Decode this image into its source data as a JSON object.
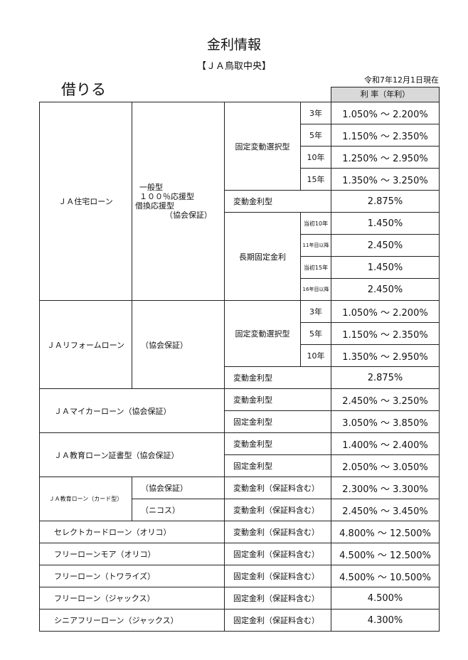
{
  "title": "金利情報",
  "org": "【ＪＡ鳥取中央】",
  "section": "借りる",
  "as_of": "令和7年12月1日現在",
  "rate_header": "利 率（年利）",
  "housing": {
    "name": "ＪＡ住宅ローン",
    "types": [
      "一般型",
      "１００％応援型",
      "借換応援型",
      "（協会保証）"
    ],
    "fixed_select": "固定変動選択型",
    "terms": [
      {
        "term": "3年",
        "rate": "1.050% ～ 2.200%"
      },
      {
        "term": "5年",
        "rate": "1.150% ～ 2.350%"
      },
      {
        "term": "10年",
        "rate": "1.250% ～ 2.950%"
      },
      {
        "term": "15年",
        "rate": "1.350% ～ 3.250%"
      }
    ],
    "variable": "変動金利型",
    "variable_rate": "2.875%",
    "long_fixed": "長期固定金利",
    "long_terms": [
      {
        "term": "当初10年",
        "rate": "1.450%"
      },
      {
        "term": "11年目以降",
        "rate": "2.450%"
      },
      {
        "term": "当初15年",
        "rate": "1.450%"
      },
      {
        "term": "16年目以降",
        "rate": "2.450%"
      }
    ]
  },
  "reform": {
    "name": "ＪＡリフォームローン",
    "guarantee": "（協会保証）",
    "fixed_select": "固定変動選択型",
    "terms": [
      {
        "term": "3年",
        "rate": "1.050% ～ 2.200%"
      },
      {
        "term": "5年",
        "rate": "1.150% ～ 2.350%"
      },
      {
        "term": "10年",
        "rate": "1.350% ～ 2.950%"
      }
    ],
    "variable": "変動金利型",
    "variable_rate": "2.875%"
  },
  "mycar": {
    "name": "ＪＡマイカーローン（協会保証）",
    "rows": [
      {
        "type": "変動金利型",
        "rate": "2.450% ～ 3.250%"
      },
      {
        "type": "固定金利型",
        "rate": "3.050% ～ 3.850%"
      }
    ]
  },
  "education": {
    "name": "ＪＡ教育ローン証書型（協会保証）",
    "rows": [
      {
        "type": "変動金利型",
        "rate": "1.400% ～ 2.400%"
      },
      {
        "type": "固定金利型",
        "rate": "2.050% ～ 3.050%"
      }
    ]
  },
  "edu_card": {
    "name": "ＪＡ教育ローン（カード型）",
    "rows": [
      {
        "guarantee": "（協会保証）",
        "type": "変動金利（保証料含む）",
        "rate": "2.300% ～ 3.300%"
      },
      {
        "guarantee": "（ニコス）",
        "type": "変動金利（保証料含む）",
        "rate": "2.450% ～ 3.450%"
      }
    ]
  },
  "others": [
    {
      "name": "セレクトカードローン（オリコ）",
      "type": "変動金利（保証料含む）",
      "rate": "4.800% ～ 12.500%"
    },
    {
      "name": "フリーローンモア（オリコ）",
      "type": "固定金利（保証料含む）",
      "rate": "4.500% ～ 12.500%"
    },
    {
      "name": "フリーローン（トワライズ）",
      "type": "固定金利（保証料含む）",
      "rate": "4.500% ～ 10.500%"
    },
    {
      "name": "フリーローン（ジャックス）",
      "type": "固定金利（保証料含む）",
      "rate": "4.500%"
    },
    {
      "name": "シニアフリーローン（ジャックス）",
      "type": "固定金利（保証料含む）",
      "rate": "4.300%"
    }
  ]
}
